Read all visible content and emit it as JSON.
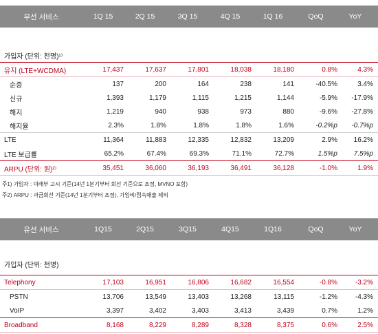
{
  "wireless": {
    "headers": [
      "무선 서비스",
      "1Q 15",
      "2Q 15",
      "3Q 15",
      "4Q 15",
      "1Q 16",
      "QoQ",
      "YoY"
    ],
    "section_label": "가입자 (단위: 천명)¹⁾",
    "rows": [
      {
        "label": "유지 (LTE+WCDMA)",
        "values": [
          "17,437",
          "17,637",
          "17,801",
          "18,038",
          "18,180",
          "0.8%",
          "4.3%"
        ]
      },
      {
        "label": "순증",
        "values": [
          "137",
          "200",
          "164",
          "238",
          "141",
          "-40.5%",
          "3.4%"
        ]
      },
      {
        "label": "신규",
        "values": [
          "1,393",
          "1,179",
          "1,115",
          "1,215",
          "1,144",
          "-5.9%",
          "-17.9%"
        ]
      },
      {
        "label": "해지",
        "values": [
          "1,219",
          "940",
          "938",
          "973",
          "880",
          "-9.6%",
          "-27.8%"
        ]
      },
      {
        "label": "해지율",
        "values": [
          "2.3%",
          "1.8%",
          "1.8%",
          "1.8%",
          "1.6%",
          "-0.2%p",
          "-0.7%p"
        ]
      },
      {
        "label": "LTE",
        "values": [
          "11,364",
          "11,883",
          "12,335",
          "12,832",
          "13,209",
          "2.9%",
          "16.2%"
        ]
      },
      {
        "label": "LTE 보급률",
        "values": [
          "65.2%",
          "67.4%",
          "69.3%",
          "71.1%",
          "72.7%",
          "1.5%p",
          "7.5%p"
        ]
      },
      {
        "label": "ARPU (단위: 원)²⁾",
        "values": [
          "35,451",
          "36,060",
          "36,193",
          "36,491",
          "36,128",
          "-1.0%",
          "1.9%"
        ]
      }
    ],
    "notes": [
      "주1) 가입자 : 미래부 고시 기준(14년 1분기부터 회선 기준으로 조정, MVNO 포함)",
      "주2) ARPU : 과금회선 기준(14년 1분기부터 조정), 가입비/접속매출 제외"
    ]
  },
  "wired": {
    "headers": [
      "유선 서비스",
      "1Q15",
      "2Q15",
      "3Q15",
      "4Q15",
      "1Q16",
      "QoQ",
      "YoY"
    ],
    "section_label": "가입자 (단위: 천명)",
    "rows": [
      {
        "label": "Telephony",
        "values": [
          "17,103",
          "16,951",
          "16,806",
          "16,682",
          "16,554",
          "-0.8%",
          "-3.2%"
        ]
      },
      {
        "label": "PSTN",
        "values": [
          "13,706",
          "13,549",
          "13,403",
          "13,268",
          "13,115",
          "-1.2%",
          "-4.3%"
        ]
      },
      {
        "label": "VoIP",
        "values": [
          "3,397",
          "3,402",
          "3,403",
          "3,413",
          "3,439",
          "0.7%",
          "1.2%"
        ]
      },
      {
        "label": "Broadband",
        "values": [
          "8,168",
          "8,229",
          "8,289",
          "8,328",
          "8,375",
          "0.6%",
          "2.5%"
        ]
      }
    ]
  }
}
